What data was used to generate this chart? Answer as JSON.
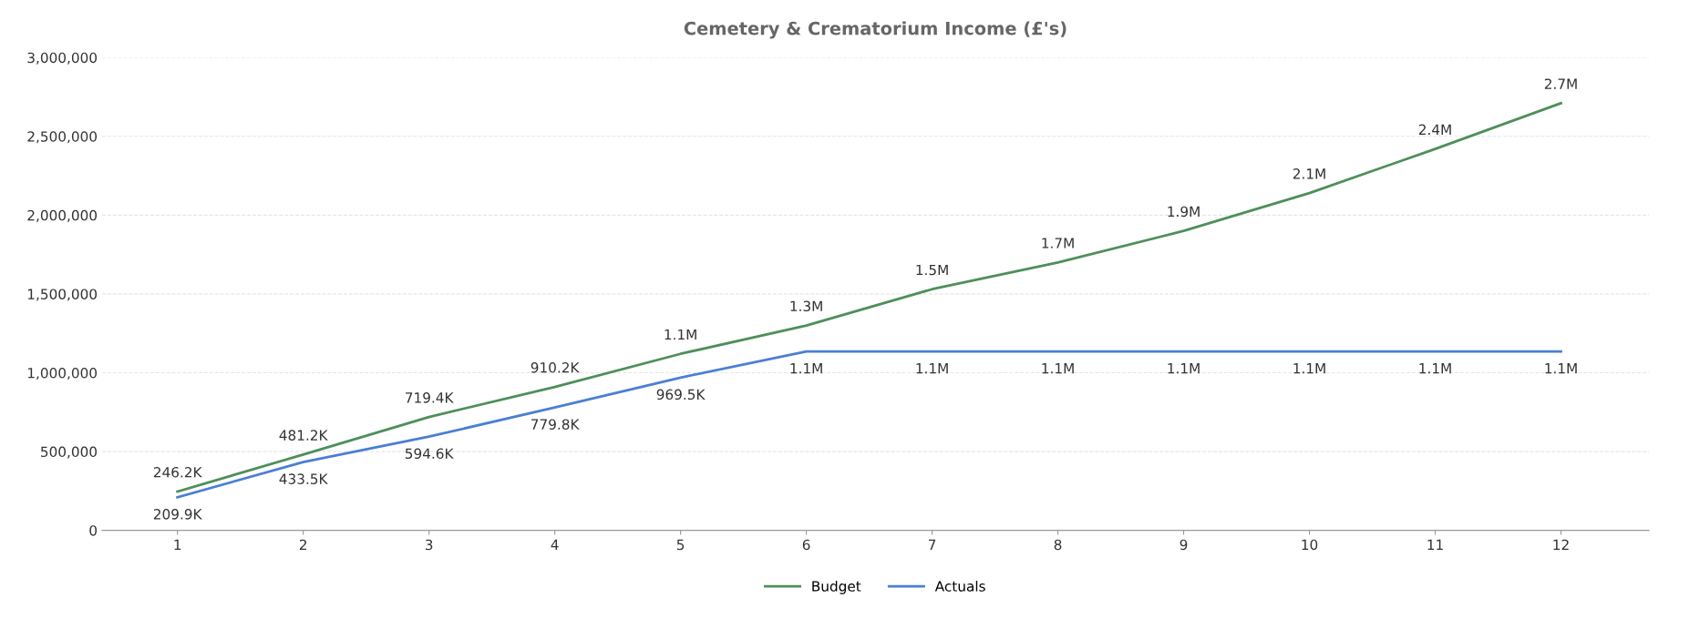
{
  "chart_data": {
    "type": "line",
    "title": "Cemetery & Crematorium Income (£'s)",
    "categories": [
      "1",
      "2",
      "3",
      "4",
      "5",
      "6",
      "7",
      "8",
      "9",
      "10",
      "11",
      "12"
    ],
    "series": [
      {
        "name": "Budget",
        "color": "#4e8f5a",
        "values": [
          246200,
          481200,
          719400,
          910200,
          1120000,
          1300000,
          1530000,
          1700000,
          1900000,
          2140000,
          2420000,
          2710000
        ],
        "value_labels": [
          "246.2K",
          "481.2K",
          "719.4K",
          "910.2K",
          "1.1M",
          "1.3M",
          "1.5M",
          "1.7M",
          "1.9M",
          "2.1M",
          "2.4M",
          "2.7M"
        ]
      },
      {
        "name": "Actuals",
        "color": "#4a7fd4",
        "values": [
          209900,
          433500,
          594600,
          779800,
          969500,
          1135000,
          1135000,
          1135000,
          1135000,
          1135000,
          1135000,
          1135000
        ],
        "value_labels": [
          "209.9K",
          "433.5K",
          "594.6K",
          "779.8K",
          "969.5K",
          "1.1M",
          "1.1M",
          "1.1M",
          "1.1M",
          "1.1M",
          "1.1M",
          "1.1M"
        ]
      }
    ],
    "ylim": [
      0,
      3000000
    ],
    "yticks": [
      {
        "value": 0,
        "label": "0"
      },
      {
        "value": 500000,
        "label": "500,000"
      },
      {
        "value": 1000000,
        "label": "1,000,000"
      },
      {
        "value": 1500000,
        "label": "1,500,000"
      },
      {
        "value": 2000000,
        "label": "2,000,000"
      },
      {
        "value": 2500000,
        "label": "2,500,000"
      },
      {
        "value": 3000000,
        "label": "3,000,000"
      }
    ],
    "grid": "y",
    "legend": "bottom",
    "marker": "none",
    "line_style": "solid"
  }
}
